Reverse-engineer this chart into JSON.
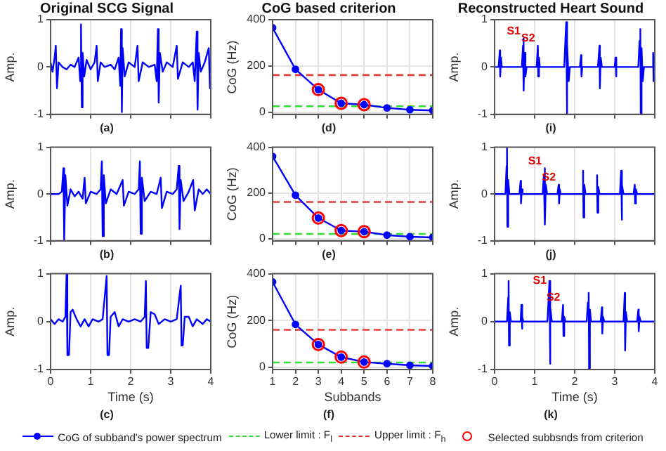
{
  "chart_data": [
    {
      "type": "line",
      "title": "Original SCG Signal",
      "subtitle": "(a)",
      "ylabel": "Amp.",
      "xlim": [
        0,
        4
      ],
      "xticks": [
        0,
        1,
        2,
        3,
        4
      ],
      "ylim": [
        -1,
        1
      ],
      "yticks": [
        -1,
        0,
        1
      ],
      "grid": "x",
      "tick_labels": "y",
      "line_style": "solid",
      "marker": "none",
      "series": [
        {
          "color": "#0000ff",
          "x": [
            0,
            0.05,
            0.1,
            0.13,
            0.16,
            0.2,
            0.3,
            0.4,
            0.5,
            0.6,
            0.7,
            0.74,
            0.76,
            0.78,
            0.8,
            0.84,
            0.9,
            1.0,
            1.1,
            1.15,
            1.18,
            1.25,
            1.35,
            1.5,
            1.6,
            1.7,
            1.74,
            1.76,
            1.78,
            1.8,
            1.85,
            1.95,
            2.1,
            2.17,
            2.2,
            2.3,
            2.45,
            2.6,
            2.65,
            2.68,
            2.7,
            2.73,
            2.8,
            2.9,
            3.05,
            3.15,
            3.18,
            3.3,
            3.45,
            3.55,
            3.6,
            3.65,
            3.67,
            3.7,
            3.75,
            3.85,
            3.95,
            3.98,
            4.0
          ],
          "values": [
            0.1,
            -0.1,
            0.2,
            0.45,
            -0.45,
            0.1,
            0,
            -0.05,
            0.05,
            0,
            0.2,
            -0.3,
            0.9,
            -0.85,
            0.3,
            -0.2,
            0.15,
            -0.05,
            0.1,
            0.45,
            -0.3,
            0.1,
            0,
            0.05,
            -0.05,
            0.2,
            -0.4,
            0.8,
            -0.95,
            0.4,
            -0.2,
            0.1,
            0,
            0.45,
            -0.3,
            0.1,
            0,
            0.05,
            -0.3,
            0.8,
            -0.75,
            0.3,
            -0.1,
            0.1,
            0,
            0.45,
            -0.25,
            0.1,
            0,
            0.1,
            -0.3,
            0.75,
            -0.9,
            0.3,
            -0.1,
            0.1,
            0.4,
            -0.45,
            0
          ]
        }
      ]
    },
    {
      "type": "line",
      "title": "CoG based criterion",
      "subtitle": "(d)",
      "ylabel": "CoG (Hz)",
      "xlim": [
        1,
        8
      ],
      "xticks": [
        1,
        2,
        3,
        4,
        5,
        6,
        7,
        8
      ],
      "ylim": [
        -10,
        400
      ],
      "yticks": [
        0,
        200,
        400
      ],
      "grid": true,
      "tick_labels": "y",
      "line_style": "solid",
      "series": [
        {
          "type": "line",
          "color": "#0000ff",
          "marker": "circle",
          "x": [
            1,
            2,
            3,
            4,
            5,
            6,
            7,
            8
          ],
          "values": [
            365,
            185,
            97,
            38,
            32,
            18,
            10,
            7
          ]
        },
        {
          "type": "scatter",
          "color": "#ff0000",
          "marker": "circle",
          "x": [
            3,
            4,
            5
          ],
          "values": [
            97,
            38,
            32
          ]
        }
      ],
      "ref_lines": [
        {
          "axis": "y",
          "value": 25,
          "color": "#33dd33",
          "line_style": "dashed"
        },
        {
          "axis": "y",
          "value": 160,
          "color": "#e03c3c",
          "line_style": "dashed"
        }
      ]
    },
    {
      "type": "line",
      "title": "Reconstructed Heart Sound",
      "subtitle": "(i)",
      "ylabel": "Amp.",
      "xlim": [
        0,
        4
      ],
      "xticks": [
        0,
        1,
        2,
        3,
        4
      ],
      "ylim": [
        -1,
        1
      ],
      "yticks": [
        -1,
        0,
        1
      ],
      "grid": "x",
      "tick_labels": "y",
      "line_style": "solid",
      "marker": "none",
      "annotations": [
        {
          "text": "S1",
          "x": 0.72,
          "y": 0.6
        },
        {
          "text": "S2",
          "x": 1.08,
          "y": 0.45
        }
      ],
      "series": [
        {
          "color": "#0000ff",
          "x": [
            0,
            0.1,
            0.13,
            0.14,
            0.16,
            0.18,
            0.68,
            0.71,
            0.72,
            0.73,
            0.75,
            0.77,
            0.8,
            1.05,
            1.08,
            1.09,
            1.11,
            1.13,
            1.74,
            1.77,
            1.79,
            1.8,
            1.82,
            1.85,
            1.88,
            2.13,
            2.16,
            2.17,
            2.19,
            2.58,
            2.62,
            2.63,
            2.65,
            2.68,
            3.0,
            3.02,
            3.03,
            3.05,
            3.59,
            3.62,
            3.64,
            3.65,
            3.67,
            3.7,
            3.73,
            3.93,
            3.96,
            3.97,
            4.0
          ],
          "values": [
            0,
            0,
            0.35,
            -0.2,
            0.2,
            0,
            0,
            0.45,
            0.6,
            -0.5,
            0.3,
            -0.2,
            0,
            0,
            0.45,
            -0.2,
            0.2,
            0,
            0,
            0.6,
            0.95,
            -1.0,
            0.5,
            -0.3,
            0,
            0,
            0.25,
            -0.2,
            0,
            0,
            0.45,
            -0.45,
            0.2,
            0,
            0,
            0.2,
            -0.2,
            0,
            0,
            0.55,
            0.8,
            -1.0,
            0.4,
            -0.3,
            0,
            0,
            0.3,
            -0.3,
            0
          ]
        }
      ]
    },
    {
      "type": "line",
      "subtitle": "(b)",
      "ylabel": "Amp.",
      "xlim": [
        0,
        4
      ],
      "xticks": [
        0,
        1,
        2,
        3,
        4
      ],
      "ylim": [
        -1,
        1
      ],
      "yticks": [
        -1,
        0,
        1
      ],
      "grid": "x",
      "tick_labels": "y",
      "line_style": "solid",
      "marker": "none",
      "series": [
        {
          "color": "#0000ff",
          "x": [
            0,
            0.2,
            0.28,
            0.32,
            0.34,
            0.37,
            0.42,
            0.5,
            0.6,
            0.7,
            0.8,
            0.85,
            0.88,
            1.0,
            1.15,
            1.25,
            1.28,
            1.3,
            1.33,
            1.38,
            1.5,
            1.65,
            1.8,
            1.83,
            1.95,
            2.1,
            2.2,
            2.23,
            2.25,
            2.28,
            2.35,
            2.5,
            2.65,
            2.75,
            2.78,
            2.9,
            3.05,
            3.15,
            3.2,
            3.22,
            3.25,
            3.32,
            3.45,
            3.56,
            3.6,
            3.7,
            3.8,
            3.9,
            4.0
          ],
          "values": [
            0,
            0,
            0.05,
            0.55,
            -1.0,
            0.4,
            -0.25,
            0.1,
            -0.05,
            0.05,
            -0.1,
            0.35,
            -0.2,
            0.05,
            0,
            0.1,
            0.7,
            -0.9,
            0.4,
            -0.2,
            0.1,
            0,
            0.3,
            -0.25,
            0.05,
            0,
            0.1,
            0.7,
            -0.85,
            0.35,
            -0.15,
            0.05,
            0,
            0.35,
            -0.3,
            0.05,
            0,
            0.1,
            0.6,
            -0.75,
            0.3,
            -0.15,
            0.05,
            0.3,
            -0.35,
            0.1,
            0,
            0.1,
            0
          ]
        }
      ]
    },
    {
      "type": "line",
      "subtitle": "(e)",
      "ylabel": "CoG (Hz)",
      "xlim": [
        1,
        8
      ],
      "xticks": [
        1,
        2,
        3,
        4,
        5,
        6,
        7,
        8
      ],
      "ylim": [
        -10,
        400
      ],
      "yticks": [
        0,
        200,
        400
      ],
      "grid": true,
      "tick_labels": "y",
      "line_style": "solid",
      "series": [
        {
          "type": "line",
          "color": "#0000ff",
          "marker": "circle",
          "x": [
            1,
            2,
            3,
            4,
            5,
            6,
            7,
            8
          ],
          "values": [
            360,
            190,
            90,
            35,
            30,
            15,
            8,
            5
          ]
        },
        {
          "type": "scatter",
          "color": "#ff0000",
          "marker": "circle",
          "x": [
            3,
            4,
            5
          ],
          "values": [
            90,
            35,
            30
          ]
        }
      ],
      "ref_lines": [
        {
          "axis": "y",
          "value": 20,
          "color": "#33dd33",
          "line_style": "dashed"
        },
        {
          "axis": "y",
          "value": 160,
          "color": "#e03c3c",
          "line_style": "dashed"
        }
      ]
    },
    {
      "type": "line",
      "subtitle": "(j)",
      "ylabel": "Amp.",
      "xlim": [
        0,
        4
      ],
      "xticks": [
        0,
        1,
        2,
        3,
        4
      ],
      "ylim": [
        -1,
        1
      ],
      "yticks": [
        -1,
        0,
        1
      ],
      "grid": "x",
      "tick_labels": "y",
      "line_style": "solid",
      "marker": "none",
      "annotations": [
        {
          "text": "S1",
          "x": 1.25,
          "y": 0.55
        },
        {
          "text": "S2",
          "x": 1.6,
          "y": 0.2
        }
      ],
      "series": [
        {
          "color": "#0000ff",
          "x": [
            0,
            0.27,
            0.3,
            0.31,
            0.32,
            0.34,
            0.37,
            0.62,
            0.65,
            0.66,
            0.68,
            0.7,
            1.2,
            1.23,
            1.25,
            1.26,
            1.28,
            1.31,
            1.57,
            1.6,
            1.61,
            1.63,
            1.65,
            2.18,
            2.21,
            2.22,
            2.24,
            2.27,
            2.53,
            2.56,
            2.57,
            2.59,
            2.62,
            3.13,
            3.16,
            3.17,
            3.19,
            3.22,
            3.47,
            3.5,
            3.51,
            3.53,
            3.56,
            4.0
          ],
          "values": [
            0,
            0,
            0.6,
            1.0,
            -0.7,
            0.3,
            0,
            0,
            0.28,
            -0.2,
            0.1,
            0,
            0,
            0.4,
            0.55,
            -0.65,
            0.2,
            0,
            0,
            0.2,
            -0.2,
            0.1,
            0,
            0,
            0.5,
            -0.5,
            0.2,
            0,
            0,
            0.4,
            -0.4,
            0.15,
            0,
            0,
            0.5,
            -0.55,
            0.2,
            0,
            0,
            0.2,
            -0.2,
            0.1,
            0,
            0
          ]
        }
      ]
    },
    {
      "type": "line",
      "subtitle": "(c)",
      "xlabel": "Time (s)",
      "ylabel": "Amp.",
      "xlim": [
        0,
        4
      ],
      "xticks": [
        0,
        1,
        2,
        3,
        4
      ],
      "ylim": [
        -1,
        1
      ],
      "yticks": [
        -1,
        0,
        1
      ],
      "grid": "x",
      "line_style": "solid",
      "marker": "none",
      "series": [
        {
          "color": "#0000ff",
          "x": [
            0,
            0.1,
            0.2,
            0.3,
            0.37,
            0.4,
            0.42,
            0.46,
            0.5,
            0.55,
            0.65,
            0.75,
            0.85,
            0.95,
            1.05,
            1.2,
            1.3,
            1.4,
            1.42,
            1.46,
            1.5,
            1.6,
            1.7,
            1.8,
            1.95,
            2.1,
            2.25,
            2.35,
            2.38,
            2.4,
            2.44,
            2.5,
            2.6,
            2.7,
            2.85,
            3.0,
            3.15,
            3.25,
            3.27,
            3.3,
            3.35,
            3.45,
            3.55,
            3.65,
            3.8,
            3.9,
            4.0
          ],
          "values": [
            0.05,
            -0.05,
            0.05,
            0,
            0.1,
            1.0,
            -0.7,
            -0.7,
            0.2,
            0.25,
            0.05,
            -0.1,
            0.05,
            -0.1,
            0.05,
            0,
            0.05,
            0.95,
            -0.7,
            -0.7,
            0.1,
            0.2,
            -0.1,
            0.05,
            0,
            0.05,
            0,
            0.1,
            0.85,
            -0.55,
            -0.55,
            0.2,
            0.15,
            -0.05,
            0.05,
            0,
            0.05,
            0.75,
            -0.5,
            -0.5,
            0.1,
            0.1,
            -0.1,
            0.05,
            -0.05,
            0.05,
            0
          ]
        }
      ]
    },
    {
      "type": "line",
      "subtitle": "(f)",
      "xlabel": "Subbands",
      "ylabel": "CoG (Hz)",
      "xlim": [
        1,
        8
      ],
      "xticks": [
        1,
        2,
        3,
        4,
        5,
        6,
        7,
        8
      ],
      "ylim": [
        -10,
        400
      ],
      "yticks": [
        0,
        200,
        400
      ],
      "grid": true,
      "line_style": "solid",
      "legend": "bottom",
      "series": [
        {
          "type": "line",
          "name": "CoG of subband's power spectrum",
          "color": "#0000ff",
          "marker": "circle",
          "x": [
            1,
            2,
            3,
            4,
            5,
            6,
            7,
            8
          ],
          "values": [
            365,
            183,
            97,
            43,
            22,
            15,
            8,
            5
          ]
        },
        {
          "type": "scatter",
          "name": "Selected subbsnds from criterion",
          "color": "#ff0000",
          "marker": "circle",
          "x": [
            3,
            4,
            5
          ],
          "values": [
            97,
            43,
            22
          ]
        }
      ],
      "ref_lines": [
        {
          "axis": "y",
          "value": 20,
          "label": "Lower limit : F$_{l}$",
          "color": "#33dd33",
          "line_style": "dashed"
        },
        {
          "axis": "y",
          "value": 160,
          "label": "Upper limit : F$_{h}$",
          "color": "#e03c3c",
          "line_style": "dashed"
        }
      ]
    },
    {
      "type": "line",
      "subtitle": "(k)",
      "xlabel": "Time (s)",
      "ylabel": "Amp.",
      "xlim": [
        0,
        4
      ],
      "xticks": [
        0,
        1,
        2,
        3,
        4
      ],
      "ylim": [
        -1,
        1
      ],
      "yticks": [
        -1,
        0,
        1
      ],
      "grid": "x",
      "line_style": "solid",
      "marker": "none",
      "annotations": [
        {
          "text": "S1",
          "x": 1.37,
          "y": 0.85
        },
        {
          "text": "S2",
          "x": 1.71,
          "y": 0.35
        }
      ],
      "series": [
        {
          "color": "#0000ff",
          "x": [
            0,
            0.31,
            0.34,
            0.35,
            0.36,
            0.38,
            0.41,
            0.65,
            0.67,
            0.68,
            0.7,
            0.72,
            1.32,
            1.35,
            1.37,
            1.38,
            1.4,
            1.43,
            1.68,
            1.71,
            1.72,
            1.74,
            1.77,
            2.3,
            2.33,
            2.35,
            2.36,
            2.38,
            2.41,
            2.65,
            2.68,
            2.69,
            2.71,
            2.74,
            3.22,
            3.25,
            3.26,
            3.28,
            3.31,
            3.56,
            3.59,
            3.6,
            3.62,
            3.65,
            4.0
          ],
          "values": [
            0,
            0,
            0.5,
            0.85,
            -0.5,
            0.2,
            0,
            0,
            0.35,
            -0.15,
            0.1,
            0,
            0,
            0.5,
            0.85,
            -0.88,
            0.3,
            0,
            0,
            0.35,
            -0.3,
            0.1,
            0,
            0,
            0.4,
            0.6,
            -1.0,
            0.25,
            0,
            0,
            0.3,
            -0.25,
            0.1,
            0,
            0,
            0.6,
            -0.6,
            0.2,
            0,
            0,
            0.25,
            -0.2,
            0.1,
            0,
            0
          ]
        }
      ]
    }
  ]
}
